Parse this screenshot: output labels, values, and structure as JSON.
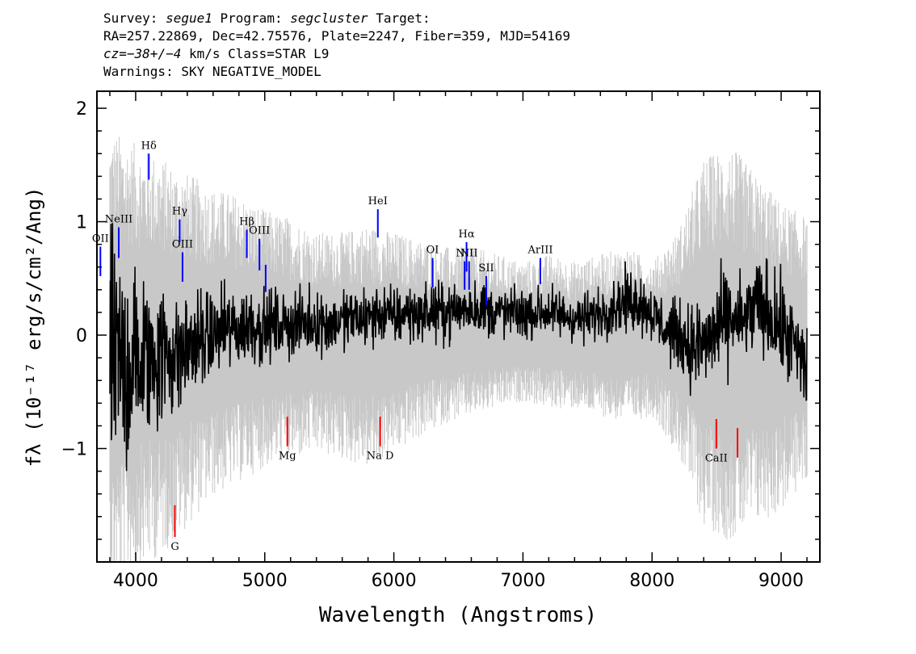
{
  "header": {
    "survey_label": "Survey:",
    "survey": "segue1",
    "program_label": "Program:",
    "program": "segcluster",
    "target_label": "Target:",
    "line2": "RA=257.22869, Dec=42.75576, Plate=2247, Fiber=359, MJD=54169",
    "cz_label": "cz=",
    "cz_value": "−38+/−4",
    "cz_rest": " km/s Class=STAR L9",
    "warnings": "Warnings: SKY NEGATIVE_MODEL"
  },
  "chart_data": {
    "type": "line",
    "xlabel": "Wavelength (Angstroms)",
    "ylabel": "fλ (10⁻¹⁷ erg/s/cm²/Ang)",
    "xlim": [
      3700,
      9300
    ],
    "ylim": [
      -2.0,
      2.15
    ],
    "x_ticks": [
      4000,
      5000,
      6000,
      7000,
      8000,
      9000
    ],
    "y_ticks": [
      -1,
      0,
      1,
      2
    ],
    "grid": false,
    "series": [
      {
        "role": "error-band",
        "color": "#c8c8c8",
        "x": [
          3800,
          4000,
          4200,
          4400,
          4600,
          4800,
          5000,
          5200,
          5400,
          5600,
          5800,
          6000,
          6200,
          6400,
          6600,
          6800,
          7000,
          7200,
          7400,
          7600,
          7800,
          8000,
          8200,
          8400,
          8600,
          8800,
          9000,
          9200
        ],
        "upper": [
          1.4,
          1.3,
          1.2,
          1.1,
          1.0,
          0.95,
          0.85,
          0.8,
          0.7,
          0.7,
          0.75,
          0.7,
          0.65,
          0.6,
          0.6,
          0.55,
          0.5,
          0.55,
          0.5,
          0.55,
          0.6,
          0.5,
          0.7,
          1.2,
          1.3,
          1.1,
          0.9,
          0.8
        ],
        "lower": [
          -1.8,
          -1.6,
          -1.5,
          -1.3,
          -1.1,
          -1.0,
          -0.9,
          -0.85,
          -0.8,
          -0.85,
          -0.9,
          -0.8,
          -0.7,
          -0.6,
          -0.55,
          -0.5,
          -0.45,
          -0.5,
          -0.5,
          -0.55,
          -0.6,
          -0.55,
          -0.8,
          -1.3,
          -1.4,
          -1.3,
          -1.2,
          -1.0
        ]
      },
      {
        "role": "flux",
        "color": "#000000",
        "x": [
          3800,
          3900,
          4000,
          4100,
          4200,
          4300,
          4400,
          4500,
          4600,
          4700,
          4800,
          4900,
          5000,
          5100,
          5200,
          5300,
          5400,
          5500,
          5600,
          5700,
          5800,
          5900,
          6000,
          6100,
          6200,
          6300,
          6400,
          6500,
          6600,
          6700,
          6800,
          6900,
          7000,
          7100,
          7200,
          7300,
          7400,
          7500,
          7600,
          7700,
          7800,
          7900,
          8000,
          8100,
          8200,
          8300,
          8400,
          8500,
          8600,
          8700,
          8800,
          8900,
          9000,
          9100,
          9200
        ],
        "y": [
          -0.2,
          -0.3,
          -0.25,
          -0.2,
          -0.15,
          -0.2,
          -0.1,
          -0.05,
          0.0,
          0.05,
          0.05,
          0.1,
          0.05,
          0.1,
          0.1,
          0.1,
          0.12,
          0.1,
          0.12,
          0.15,
          0.15,
          0.2,
          0.15,
          0.2,
          0.18,
          0.2,
          0.2,
          0.22,
          0.25,
          0.22,
          0.2,
          0.2,
          0.18,
          0.2,
          0.2,
          0.18,
          0.15,
          0.15,
          0.2,
          0.25,
          0.3,
          0.3,
          0.2,
          0.05,
          0.0,
          -0.1,
          -0.1,
          0.05,
          0.15,
          0.1,
          0.25,
          0.2,
          0.05,
          -0.1,
          -0.3
        ],
        "amplitude": [
          0.9,
          0.8,
          0.7,
          0.6,
          0.5,
          0.45,
          0.4,
          0.35,
          0.32,
          0.3,
          0.3,
          0.28,
          0.26,
          0.24,
          0.24,
          0.22,
          0.22,
          0.22,
          0.22,
          0.22,
          0.22,
          0.22,
          0.22,
          0.2,
          0.2,
          0.2,
          0.2,
          0.2,
          0.2,
          0.2,
          0.18,
          0.18,
          0.18,
          0.18,
          0.18,
          0.18,
          0.18,
          0.18,
          0.18,
          0.2,
          0.22,
          0.22,
          0.2,
          0.22,
          0.25,
          0.3,
          0.35,
          0.35,
          0.35,
          0.3,
          0.35,
          0.35,
          0.35,
          0.35,
          0.35
        ]
      }
    ],
    "emission_lines": [
      {
        "label": "OII",
        "x": 3727,
        "y0": 0.52,
        "y1": 0.78,
        "color": "#0000ff"
      },
      {
        "label": "NeIII",
        "x": 3869,
        "y0": 0.68,
        "y1": 0.95,
        "color": "#0000ff"
      },
      {
        "label": "Hδ",
        "x": 4102,
        "y0": 1.37,
        "y1": 1.6,
        "color": "#0000ff"
      },
      {
        "label": "Hγ",
        "x": 4341,
        "y0": 0.82,
        "y1": 1.02,
        "color": "#0000ff"
      },
      {
        "label": "OIII",
        "x": 4363,
        "y0": 0.47,
        "y1": 0.73,
        "color": "#0000ff"
      },
      {
        "label": "Hβ",
        "x": 4861,
        "y0": 0.68,
        "y1": 0.93,
        "color": "#0000ff"
      },
      {
        "label": "OIII",
        "x": 4959,
        "y0": 0.57,
        "y1": 0.85,
        "color": "#0000ff"
      },
      {
        "label": "",
        "x": 5007,
        "y0": 0.38,
        "y1": 0.62,
        "color": "#0000ff"
      },
      {
        "label": "HeI",
        "x": 5876,
        "y0": 0.86,
        "y1": 1.11,
        "color": "#0000ff"
      },
      {
        "label": "OI",
        "x": 6300,
        "y0": 0.42,
        "y1": 0.68,
        "color": "#0000ff"
      },
      {
        "label": "NII",
        "x": 6548,
        "y0": 0.4,
        "y1": 0.65,
        "color": "#0000ff"
      },
      {
        "label": "Hα",
        "x": 6563,
        "y0": 0.56,
        "y1": 0.82,
        "color": "#0000ff"
      },
      {
        "label": "NII",
        "x": 6583,
        "y0": 0.4,
        "y1": 0.65,
        "color": "#0000ff"
      },
      {
        "label": "SII",
        "x": 6716,
        "y0": 0.26,
        "y1": 0.52,
        "color": "#0000ff"
      },
      {
        "label": "ArIII",
        "x": 7135,
        "y0": 0.45,
        "y1": 0.68,
        "color": "#0000ff"
      }
    ],
    "absorption_lines": [
      {
        "label": "G",
        "x": 4304,
        "y0": -1.78,
        "y1": -1.5,
        "color": "#ff0000"
      },
      {
        "label": "Mg",
        "x": 5175,
        "y0": -0.98,
        "y1": -0.72,
        "color": "#ff0000"
      },
      {
        "label": "Na D",
        "x": 5894,
        "y0": -0.98,
        "y1": -0.72,
        "color": "#ff0000"
      },
      {
        "label": "CaII",
        "x": 8498,
        "y0": -1.0,
        "y1": -0.74,
        "color": "#ff0000"
      },
      {
        "label": "",
        "x": 8662,
        "y0": -1.08,
        "y1": -0.82,
        "color": "#ff0000"
      }
    ]
  }
}
